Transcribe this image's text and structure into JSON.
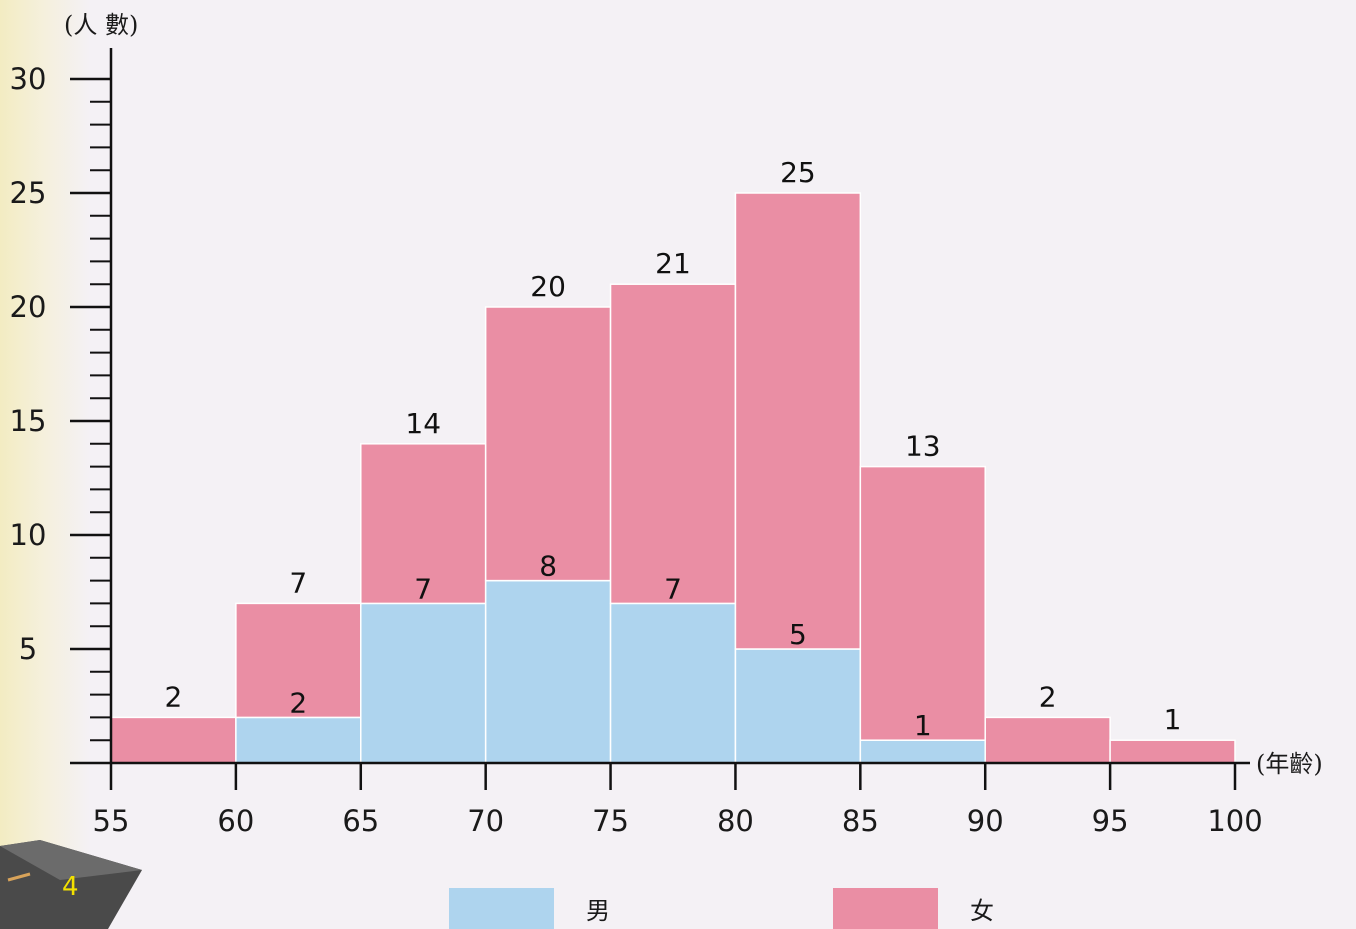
{
  "chart_data": {
    "type": "bar",
    "stacked": true,
    "x_edges": [
      55,
      60,
      65,
      70,
      75,
      80,
      85,
      90,
      95,
      100
    ],
    "categories": [
      "55-60",
      "60-65",
      "65-70",
      "70-75",
      "75-80",
      "80-85",
      "85-90",
      "90-95",
      "95-100"
    ],
    "series": [
      {
        "name": "男",
        "color": "#aed4ee",
        "values": [
          0,
          2,
          7,
          8,
          7,
          5,
          1,
          0,
          0
        ]
      },
      {
        "name": "女",
        "color": "#ea8ea4",
        "values": [
          2,
          5,
          7,
          12,
          14,
          20,
          12,
          2,
          1
        ]
      }
    ],
    "totals": [
      2,
      7,
      14,
      20,
      21,
      25,
      13,
      2,
      1
    ],
    "male_labels": [
      null,
      "2",
      "7",
      "8",
      "7",
      "5",
      "1",
      null,
      null
    ],
    "total_labels": [
      "2",
      "7",
      "14",
      "20",
      "21",
      "25",
      "13",
      "2",
      "1"
    ],
    "ylabel": "(人 數)",
    "xlabel": "(年齡)",
    "ylim": [
      0,
      30
    ],
    "xlim": [
      55,
      100
    ],
    "yticks": [
      5,
      10,
      15,
      20,
      25,
      30
    ],
    "xticks": [
      55,
      60,
      65,
      70,
      75,
      80,
      85,
      90,
      95,
      100
    ],
    "grid": false,
    "legend_position": "bottom"
  },
  "legend": {
    "male": "男",
    "female": "女"
  },
  "page_number": "4"
}
